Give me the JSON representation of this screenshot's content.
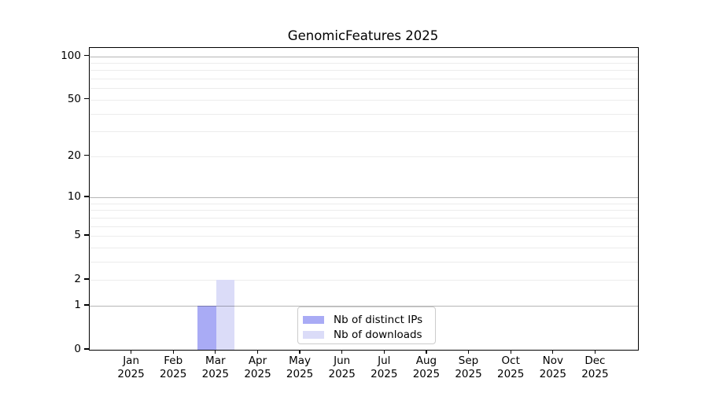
{
  "chart_data": {
    "type": "bar",
    "title": "GenomicFeatures 2025",
    "categories": [
      "Jan",
      "Feb",
      "Mar",
      "Apr",
      "May",
      "Jun",
      "Jul",
      "Aug",
      "Sep",
      "Oct",
      "Nov",
      "Dec"
    ],
    "year_label": "2025",
    "series": [
      {
        "name": "Nb of distinct IPs",
        "color": "#a9abf5",
        "values": [
          0,
          0,
          1,
          0,
          0,
          0,
          0,
          0,
          0,
          0,
          0,
          0
        ]
      },
      {
        "name": "Nb of downloads",
        "color": "#dbdcf8",
        "values": [
          0,
          0,
          2,
          0,
          0,
          0,
          0,
          0,
          0,
          0,
          0,
          0
        ]
      }
    ],
    "yticks": [
      0,
      1,
      2,
      5,
      10,
      20,
      50,
      100
    ],
    "ylim": [
      0,
      114
    ],
    "scale": "log1p",
    "grid": "horizontal",
    "xlabel": "",
    "ylabel": "",
    "legend_position": "lower-center",
    "colors": {
      "major_grid": "#b5b5b5",
      "minor_grid": "#ececec",
      "spine": "#000000",
      "legend_border": "#cccccc",
      "background": "#ffffff"
    }
  }
}
